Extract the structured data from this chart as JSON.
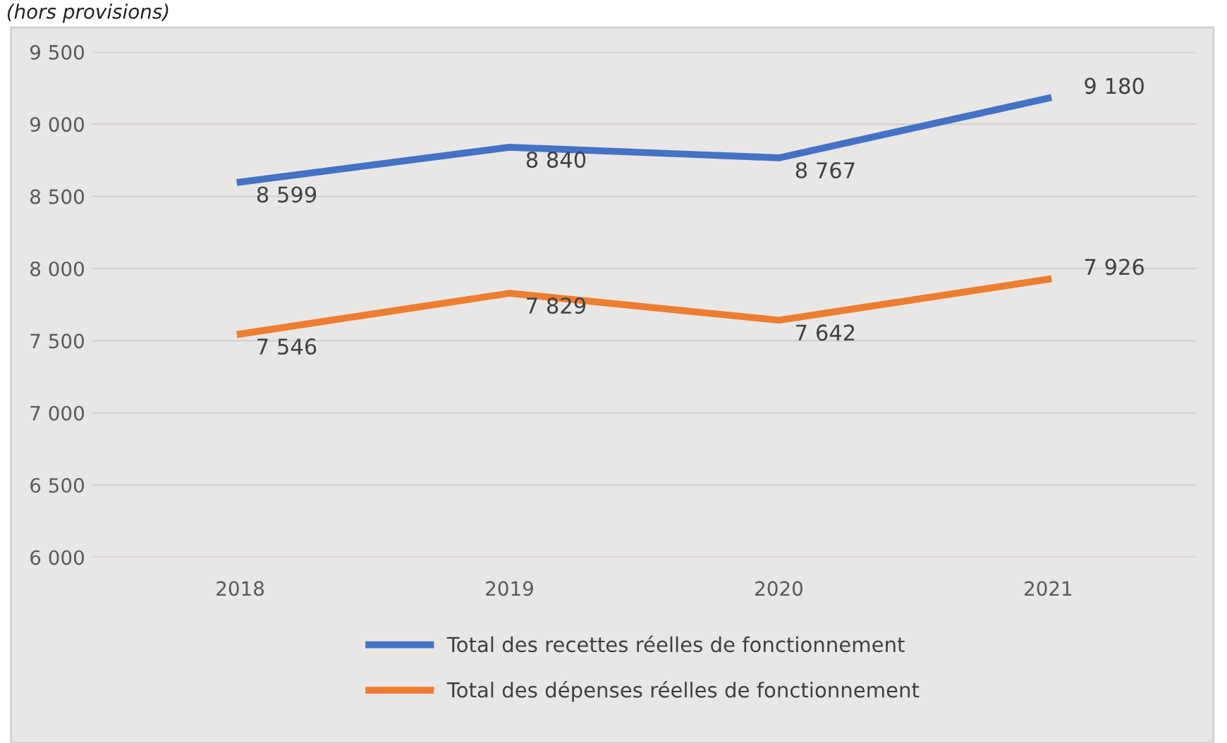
{
  "chart_data": {
    "type": "line",
    "title": "(hors provisions)",
    "categories": [
      "2018",
      "2019",
      "2020",
      "2021"
    ],
    "series": [
      {
        "name": "Total des recettes réelles de fonctionnement",
        "color": "#4472c4",
        "values": [
          8599,
          8840,
          8767,
          9180
        ],
        "value_labels": [
          "8 599",
          "8 840",
          "8 767",
          "9 180"
        ]
      },
      {
        "name": "Total des dépenses réelles de fonctionnement",
        "color": "#ed7d31",
        "values": [
          7546,
          7829,
          7642,
          7926
        ],
        "value_labels": [
          "7 546",
          "7 829",
          "7 642",
          "7 926"
        ]
      }
    ],
    "ylim": [
      6000,
      9500
    ],
    "yticks": [
      {
        "value": 6000,
        "label": "6 000"
      },
      {
        "value": 6500,
        "label": "6 500"
      },
      {
        "value": 7000,
        "label": "7 000"
      },
      {
        "value": 7500,
        "label": "7 500"
      },
      {
        "value": 8000,
        "label": "8 000"
      },
      {
        "value": 8500,
        "label": "8 500"
      },
      {
        "value": 9000,
        "label": "9 000"
      },
      {
        "value": 9500,
        "label": "9 500"
      }
    ],
    "grid": "y",
    "legend": "bottom",
    "marker": "none",
    "line_style": "solid"
  }
}
